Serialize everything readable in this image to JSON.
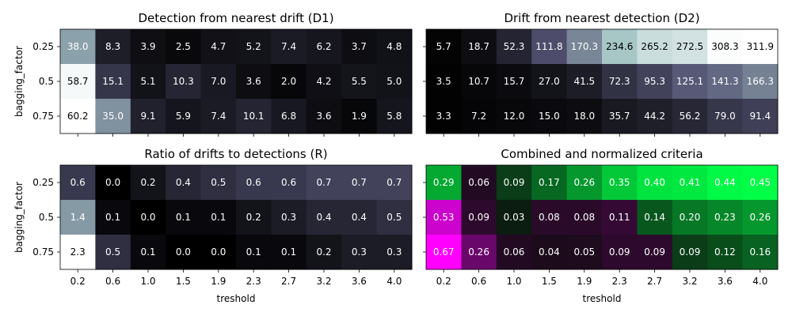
{
  "chart_data": [
    {
      "type": "heatmap",
      "title": "Detection from nearest drift (D1)",
      "xlabel": "",
      "ylabel": "bagging_factor",
      "x_categories": [
        "0.2",
        "0.6",
        "1.0",
        "1.5",
        "1.9",
        "2.3",
        "2.7",
        "3.2",
        "3.6",
        "4.0"
      ],
      "y_categories": [
        "0.25",
        "0.5",
        "0.75"
      ],
      "colormap": "bone",
      "labels": [
        [
          "38.0",
          "8.3",
          "3.9",
          "2.5",
          "4.7",
          "5.2",
          "7.4",
          "6.2",
          "3.7",
          "4.8"
        ],
        [
          "58.7",
          "15.1",
          "5.1",
          "10.3",
          "7.0",
          "3.6",
          "2.0",
          "4.2",
          "5.5",
          "5.0"
        ],
        [
          "60.2",
          "35.0",
          "9.1",
          "5.9",
          "7.4",
          "10.1",
          "6.8",
          "3.6",
          "1.9",
          "5.8"
        ]
      ],
      "values": [
        [
          38.0,
          8.3,
          3.9,
          2.5,
          4.7,
          5.2,
          7.4,
          6.2,
          3.7,
          4.8
        ],
        [
          58.7,
          15.1,
          5.1,
          10.3,
          7.0,
          3.6,
          2.0,
          4.2,
          5.5,
          5.0
        ],
        [
          60.2,
          35.0,
          9.1,
          5.9,
          7.4,
          10.1,
          6.8,
          3.6,
          1.9,
          5.8
        ]
      ],
      "vmin": 0,
      "vmax": 60.2
    },
    {
      "type": "heatmap",
      "title": "Drift from nearest detection (D2)",
      "xlabel": "",
      "ylabel": "",
      "x_categories": [
        "0.2",
        "0.6",
        "1.0",
        "1.5",
        "1.9",
        "2.3",
        "2.7",
        "3.2",
        "3.6",
        "4.0"
      ],
      "y_categories": [
        "0.25",
        "0.5",
        "0.75"
      ],
      "colormap": "bone",
      "labels": [
        [
          "5.7",
          "18.7",
          "52.3",
          "111.8",
          "170.3",
          "234.6",
          "265.2",
          "272.5",
          "308.3",
          "311.9"
        ],
        [
          "3.5",
          "10.7",
          "15.7",
          "27.0",
          "41.5",
          "72.3",
          "95.3",
          "125.1",
          "141.3",
          "166.3"
        ],
        [
          "3.3",
          "7.2",
          "12.0",
          "15.0",
          "18.0",
          "35.7",
          "44.2",
          "56.2",
          "79.0",
          "91.4"
        ]
      ],
      "values": [
        [
          5.7,
          18.7,
          52.3,
          111.8,
          170.3,
          234.6,
          265.2,
          272.5,
          308.3,
          311.9
        ],
        [
          3.5,
          10.7,
          15.7,
          27.0,
          41.5,
          72.3,
          95.3,
          125.1,
          141.3,
          166.3
        ],
        [
          3.3,
          7.2,
          12.0,
          15.0,
          18.0,
          35.7,
          44.2,
          56.2,
          79.0,
          91.4
        ]
      ],
      "vmin": 0,
      "vmax": 311.9
    },
    {
      "type": "heatmap",
      "title": "Ratio of drifts to detections (R)",
      "xlabel": "treshold",
      "ylabel": "bagging_factor",
      "x_categories": [
        "0.2",
        "0.6",
        "1.0",
        "1.5",
        "1.9",
        "2.3",
        "2.7",
        "3.2",
        "3.6",
        "4.0"
      ],
      "y_categories": [
        "0.25",
        "0.5",
        "0.75"
      ],
      "colormap": "bone",
      "labels": [
        [
          "0.6",
          "0.0",
          "0.2",
          "0.4",
          "0.5",
          "0.6",
          "0.6",
          "0.7",
          "0.7",
          "0.7"
        ],
        [
          "1.4",
          "0.1",
          "0.0",
          "0.1",
          "0.1",
          "0.2",
          "0.3",
          "0.4",
          "0.4",
          "0.5"
        ],
        [
          "2.3",
          "0.5",
          "0.1",
          "0.0",
          "0.0",
          "0.1",
          "0.1",
          "0.2",
          "0.3",
          "0.3"
        ]
      ],
      "values": [
        [
          0.6,
          0.0,
          0.2,
          0.4,
          0.5,
          0.6,
          0.6,
          0.7,
          0.7,
          0.7
        ],
        [
          1.4,
          0.1,
          0.0,
          0.1,
          0.1,
          0.2,
          0.3,
          0.4,
          0.4,
          0.5
        ],
        [
          2.3,
          0.5,
          0.1,
          0.0,
          0.0,
          0.1,
          0.1,
          0.2,
          0.3,
          0.3
        ]
      ],
      "vmin": 0,
      "vmax": 2.3
    },
    {
      "type": "heatmap",
      "title": "Combined and normalized criteria",
      "xlabel": "treshold",
      "ylabel": "",
      "x_categories": [
        "0.2",
        "0.6",
        "1.0",
        "1.5",
        "1.9",
        "2.3",
        "2.7",
        "3.2",
        "3.6",
        "4.0"
      ],
      "y_categories": [
        "0.25",
        "0.5",
        "0.75"
      ],
      "colormap": "diverging",
      "labels": [
        [
          "0.29",
          "0.06",
          "0.09",
          "0.17",
          "0.26",
          "0.35",
          "0.40",
          "0.41",
          "0.44",
          "0.45"
        ],
        [
          "0.53",
          "0.09",
          "0.03",
          "0.08",
          "0.08",
          "0.11",
          "0.14",
          "0.20",
          "0.23",
          "0.26"
        ],
        [
          "0.67",
          "0.26",
          "0.06",
          "0.04",
          "0.05",
          "0.09",
          "0.09",
          "0.09",
          "0.12",
          "0.16"
        ]
      ],
      "values": [
        [
          0.29,
          -0.06,
          0.09,
          0.17,
          0.26,
          0.35,
          0.4,
          0.41,
          0.44,
          0.45
        ],
        [
          -0.53,
          -0.09,
          0.03,
          -0.08,
          -0.08,
          -0.11,
          0.14,
          0.2,
          0.23,
          0.26
        ],
        [
          -0.67,
          -0.26,
          -0.06,
          -0.04,
          -0.05,
          -0.09,
          -0.09,
          0.09,
          0.12,
          0.16
        ]
      ],
      "vmin": -0.67,
      "vmax": 0.45
    }
  ]
}
